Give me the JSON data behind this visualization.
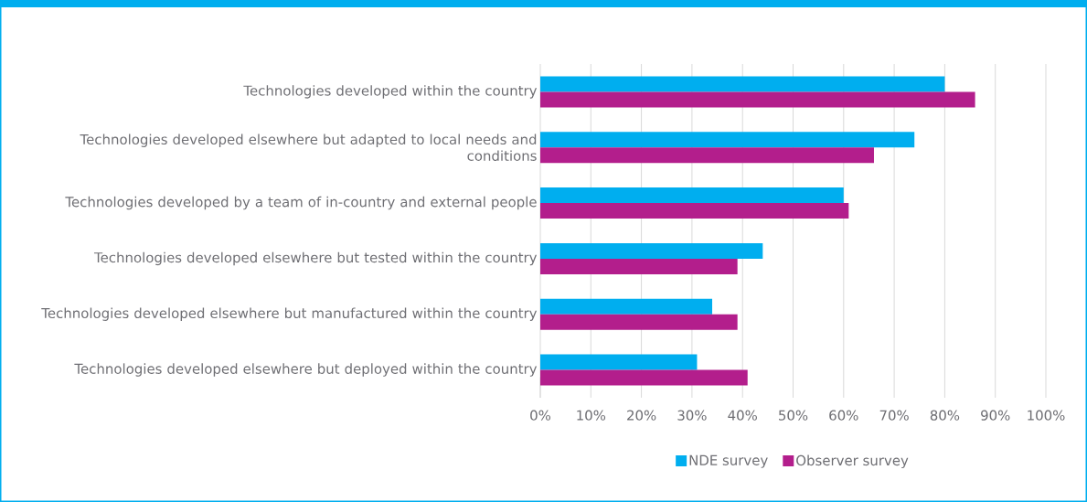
{
  "chart_data": {
    "type": "bar",
    "orientation": "horizontal",
    "categories": [
      "Technologies developed within the country",
      "Technologies developed elsewhere but adapted to local needs and conditions",
      "Technologies developed by a team of in-country and external people",
      "Technologies developed elsewhere but tested within the country",
      "Technologies developed elsewhere but manufactured within the country",
      "Technologies developed elsewhere but deployed within the country"
    ],
    "series": [
      {
        "name": "NDE survey",
        "color": "#00aeef",
        "values": [
          80,
          74,
          60,
          44,
          34,
          31
        ]
      },
      {
        "name": "Observer survey",
        "color": "#b31e8c",
        "values": [
          86,
          66,
          61,
          39,
          39,
          41
        ]
      }
    ],
    "xlim": [
      0,
      100
    ],
    "xticks": [
      {
        "value": 0,
        "label": "0%"
      },
      {
        "value": 10,
        "label": "10%"
      },
      {
        "value": 20,
        "label": "20%"
      },
      {
        "value": 30,
        "label": "30%"
      },
      {
        "value": 40,
        "label": "40%"
      },
      {
        "value": 50,
        "label": "50%"
      },
      {
        "value": 60,
        "label": "60%"
      },
      {
        "value": 70,
        "label": "70%"
      },
      {
        "value": 80,
        "label": "80%"
      },
      {
        "value": 90,
        "label": "90%"
      },
      {
        "value": 100,
        "label": "100%"
      }
    ],
    "grid": "x",
    "legend": "bottom"
  }
}
